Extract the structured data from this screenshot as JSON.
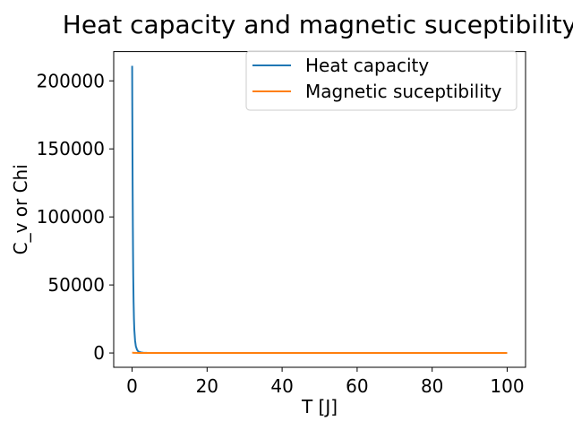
{
  "chart_data": {
    "type": "line",
    "title": "Heat capacity and magnetic suceptibility",
    "xlabel": "T [J]",
    "ylabel": "C_v or Chi",
    "xlim": [
      -4.9,
      104.9
    ],
    "ylim": [
      -10500,
      221500
    ],
    "xticks": [
      0,
      20,
      40,
      60,
      80,
      100
    ],
    "yticks": [
      0,
      50000,
      100000,
      150000,
      200000
    ],
    "grid": false,
    "legend_position": "upper right",
    "series": [
      {
        "name": "Heat capacity",
        "color": "#1f77b4",
        "x": [
          0.02,
          0.05,
          0.1,
          0.15,
          0.2,
          0.25,
          0.3,
          0.4,
          0.5,
          0.6,
          0.8,
          1.0,
          1.3,
          1.6,
          2.0,
          2.5,
          3.0,
          4.0,
          5.0,
          8.0,
          10,
          20,
          50,
          100
        ],
        "values": [
          211000,
          185000,
          150000,
          120000,
          95000,
          75000,
          58000,
          38000,
          25000,
          17000,
          9000,
          5000,
          2500,
          1300,
          700,
          350,
          200,
          90,
          50,
          15,
          8,
          2,
          0.5,
          0.1
        ]
      },
      {
        "name": "Magnetic suceptibility",
        "color": "#ff7f0e",
        "x": [
          0.02,
          0.5,
          1.0,
          2.0,
          5.0,
          10,
          20,
          50,
          100
        ],
        "values": [
          250,
          150,
          80,
          40,
          10,
          5,
          2,
          0.5,
          0.2
        ]
      }
    ]
  }
}
